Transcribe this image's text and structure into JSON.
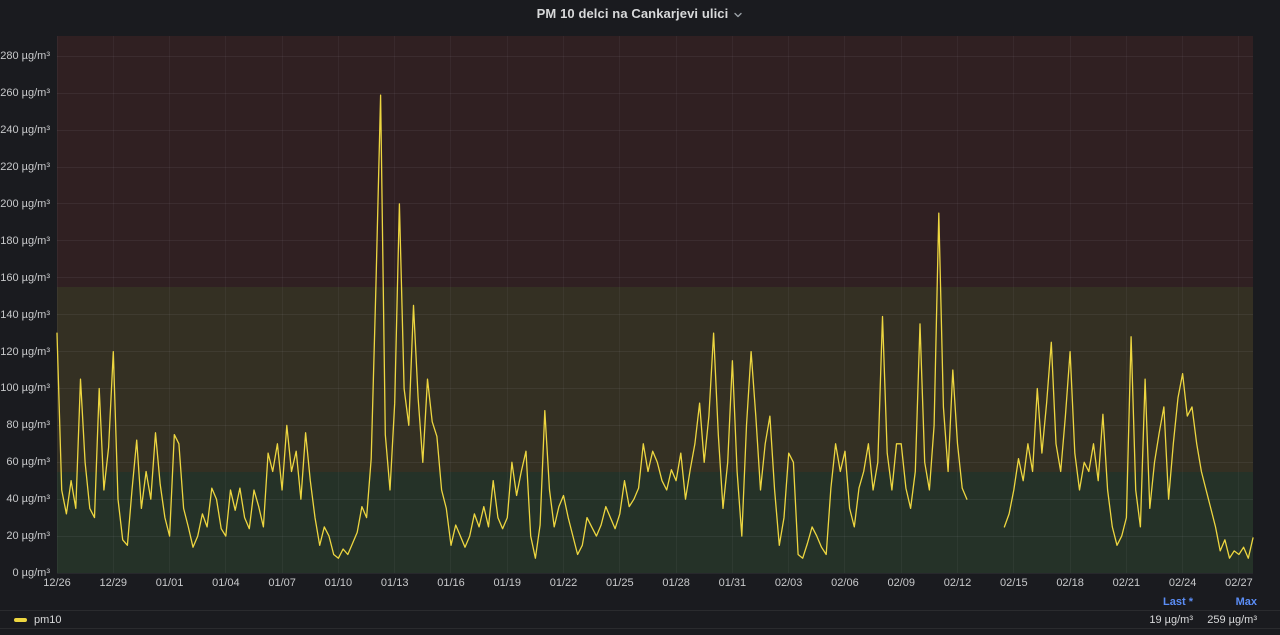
{
  "panel": {
    "title": "PM 10 delci na Cankarjevi ulici"
  },
  "colors": {
    "background": "#1a1b1f",
    "series_yellow": "#edd640",
    "legend_header_blue": "#5b8df5",
    "axis_text": "#c8c9cb",
    "title_text": "#d8d9da"
  },
  "chart_data": {
    "type": "line",
    "title": "PM 10 delci na Cankarjevi ulici",
    "y_unit": "µg/m³",
    "y_ticks": [
      0,
      20,
      40,
      60,
      80,
      100,
      120,
      140,
      160,
      180,
      200,
      220,
      240,
      260,
      280
    ],
    "ylim": [
      0,
      291
    ],
    "x_start": "12/26",
    "x_interval_hours": 6,
    "x_tick_every_days": 3,
    "x_tick_labels": [
      "12/26",
      "12/29",
      "01/01",
      "01/04",
      "01/07",
      "01/10",
      "01/13",
      "01/16",
      "01/19",
      "01/22",
      "01/25",
      "01/28",
      "01/31",
      "02/03",
      "02/06",
      "02/09",
      "02/12",
      "02/15",
      "02/18",
      "02/21",
      "02/24",
      "02/27"
    ],
    "grid": true,
    "legend_position": "bottom",
    "thresholds": [
      {
        "from": 0,
        "to": 55,
        "color": "#253228"
      },
      {
        "from": 55,
        "to": 155,
        "color": "#343023"
      },
      {
        "from": 155,
        "to": 291,
        "color": "#302022"
      }
    ],
    "series": [
      {
        "name": "pm10",
        "color": "#edd640",
        "values": [
          130,
          45,
          32,
          50,
          35,
          105,
          60,
          35,
          30,
          100,
          45,
          68,
          120,
          40,
          18,
          15,
          45,
          72,
          35,
          55,
          40,
          76,
          48,
          30,
          20,
          75,
          70,
          35,
          25,
          14,
          20,
          32,
          25,
          46,
          40,
          24,
          20,
          45,
          34,
          46,
          30,
          24,
          45,
          36,
          25,
          65,
          55,
          70,
          45,
          80,
          55,
          66,
          40,
          76,
          50,
          30,
          15,
          25,
          20,
          10,
          8,
          13,
          10,
          16,
          22,
          36,
          30,
          62,
          155,
          259,
          75,
          45,
          92,
          200,
          100,
          80,
          145,
          95,
          60,
          105,
          82,
          74,
          45,
          35,
          15,
          26,
          20,
          14,
          20,
          32,
          25,
          36,
          25,
          50,
          30,
          24,
          30,
          60,
          42,
          55,
          66,
          20,
          8,
          26,
          88,
          45,
          25,
          36,
          42,
          30,
          20,
          10,
          15,
          30,
          25,
          20,
          26,
          36,
          30,
          24,
          32,
          50,
          36,
          40,
          46,
          70,
          55,
          66,
          60,
          50,
          45,
          56,
          50,
          65,
          40,
          56,
          70,
          92,
          60,
          85,
          130,
          75,
          35,
          60,
          115,
          55,
          20,
          80,
          120,
          85,
          45,
          70,
          85,
          45,
          15,
          30,
          65,
          60,
          10,
          8,
          16,
          25,
          20,
          14,
          10,
          46,
          70,
          55,
          66,
          35,
          25,
          46,
          55,
          70,
          45,
          60,
          139,
          65,
          45,
          70,
          70,
          46,
          35,
          55,
          135,
          60,
          45,
          80,
          195,
          90,
          55,
          110,
          70,
          46,
          40,
          null,
          null,
          null,
          null,
          null,
          null,
          null,
          25,
          32,
          45,
          62,
          50,
          70,
          55,
          100,
          65,
          92,
          125,
          70,
          55,
          85,
          120,
          65,
          45,
          60,
          55,
          70,
          50,
          86,
          45,
          25,
          15,
          20,
          30,
          128,
          45,
          25,
          105,
          35,
          60,
          76,
          90,
          40,
          70,
          95,
          108,
          85,
          90,
          70,
          55,
          45,
          35,
          25,
          12,
          18,
          8,
          12,
          10,
          14,
          8,
          19
        ]
      }
    ],
    "legend": {
      "headers": [
        "Last *",
        "Max"
      ],
      "rows": [
        {
          "series": "pm10",
          "last": "19 µg/m³",
          "max": "259 µg/m³"
        }
      ]
    }
  }
}
